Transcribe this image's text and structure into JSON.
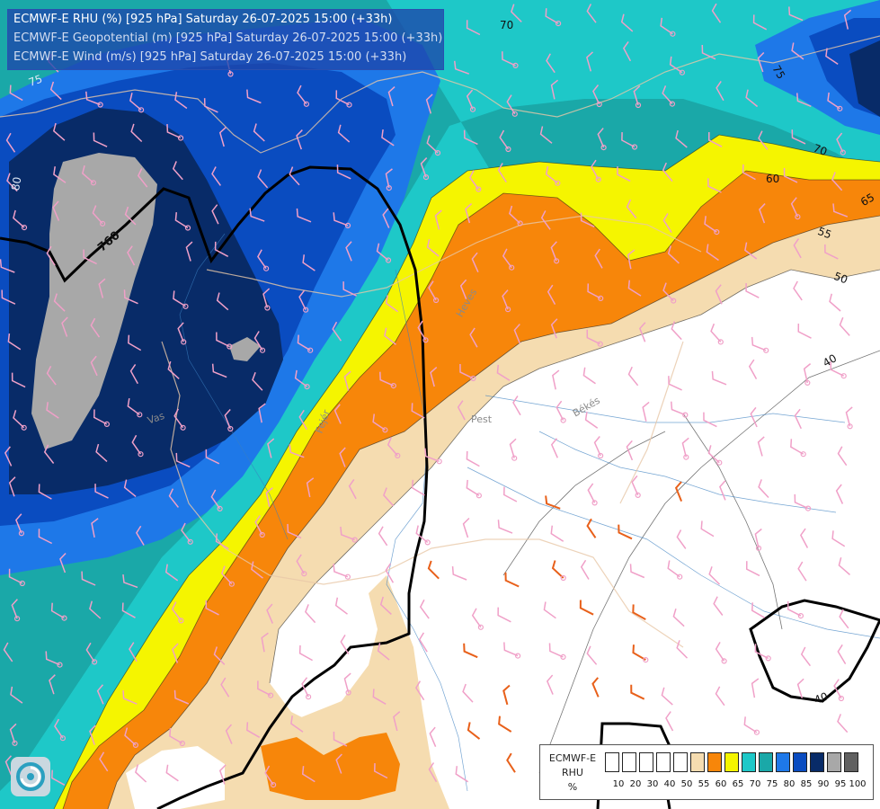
{
  "titles": {
    "line1": "ECMWF-E RHU (%) [925 hPa] Saturday 26-07-2025 15:00 (+33h)",
    "line2": "ECMWF-E Geopotential (m) [925 hPa] Saturday 26-07-2025 15:00 (+33h)",
    "line3": "ECMWF-E Wind (m/s) [925 hPa] Saturday 26-07-2025 15:00 (+33h)"
  },
  "colors": {
    "rhu_le_50": "#ffffff",
    "rhu_55": "#f5dcb0",
    "rhu_60": "#f7860a",
    "rhu_65": "#f5f500",
    "rhu_70": "#1ec8c8",
    "rhu_75": "#1aa8a8",
    "rhu_80": "#1e78e8",
    "rhu_85": "#0a4cc0",
    "rhu_90": "#082b68",
    "rhu_95": "#a8a8a8",
    "rhu_100": "#606060",
    "title_line1": "#ffffff",
    "title_line2_3": "#d2dcf0",
    "wind_barb_calm": "#f0a0c8",
    "wind_barb_strong": "#e8601a",
    "geopotential_contour": "#000000"
  },
  "contour_labels": [
    "70",
    "75",
    "70",
    "60",
    "65",
    "55",
    "50",
    "40",
    "75",
    "40",
    "80"
  ],
  "geopotential_label": "760",
  "place_labels": [
    "Heves",
    "Pest",
    "Békés",
    "Fejér",
    "Vas"
  ],
  "legend": {
    "title_line1": "ECMWF-E",
    "title_line2": "RHU",
    "unit": "%",
    "ticks": [
      "10",
      "20",
      "30",
      "40",
      "50",
      "55",
      "60",
      "65",
      "70",
      "75",
      "80",
      "85",
      "90",
      "95",
      "100"
    ],
    "colors": [
      "#ffffff",
      "#ffffff",
      "#ffffff",
      "#ffffff",
      "#ffffff",
      "#f5dcb0",
      "#f7860a",
      "#f5f500",
      "#1ec8c8",
      "#1aa8a8",
      "#1e78e8",
      "#0a4cc0",
      "#082b68",
      "#a8a8a8",
      "#606060"
    ]
  }
}
